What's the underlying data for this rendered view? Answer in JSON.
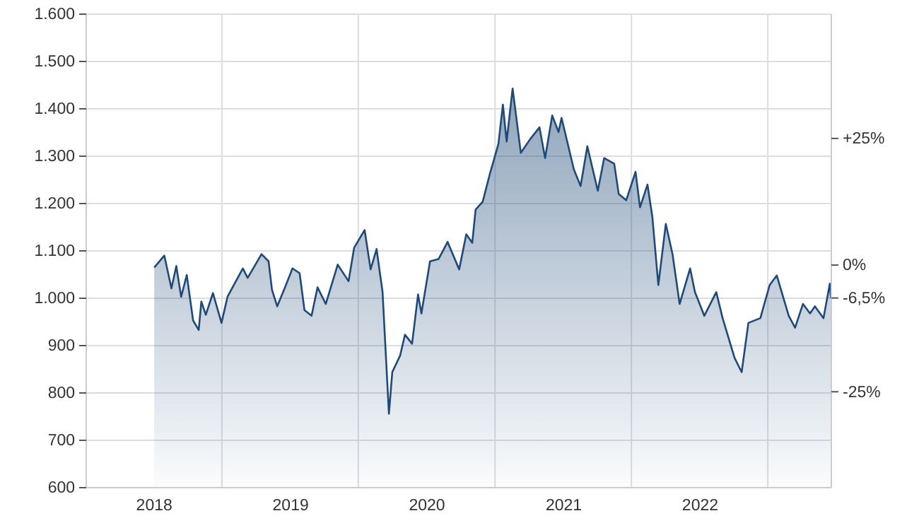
{
  "chart_data": {
    "type": "area",
    "xlim": [
      "2017-07-03",
      "2022-12-18"
    ],
    "xticks": [
      {
        "value": "2018-01-01",
        "label": "2018"
      },
      {
        "value": "2018-07-01",
        "label": null
      },
      {
        "value": "2019-01-01",
        "label": "2019"
      },
      {
        "value": "2019-07-01",
        "label": null
      },
      {
        "value": "2020-01-01",
        "label": "2020"
      },
      {
        "value": "2020-07-01",
        "label": null
      },
      {
        "value": "2021-01-01",
        "label": "2021"
      },
      {
        "value": "2021-07-01",
        "label": null
      },
      {
        "value": "2022-01-01",
        "label": "2022"
      },
      {
        "value": "2022-07-01",
        "label": null
      }
    ],
    "ylim": [
      600,
      1600
    ],
    "yticks": [
      600,
      700,
      800,
      900,
      {
        "value": 1000,
        "label": "1.000"
      },
      {
        "value": 1100,
        "label": "1.100"
      },
      {
        "value": 1200,
        "label": "1.200"
      },
      {
        "value": 1300,
        "label": "1.300"
      },
      {
        "value": 1400,
        "label": "1.400"
      },
      {
        "value": 1500,
        "label": "1.500"
      },
      {
        "value": 1600,
        "label": "1.600"
      }
    ],
    "y2lim": [
      -43.93,
      49.53
    ],
    "y2ticks": [
      {
        "value": 25,
        "label": "+25%"
      },
      {
        "value": 0,
        "label": "0%"
      },
      {
        "value": -6.5,
        "label": "-6,5%"
      },
      {
        "value": -25,
        "label": "-25%"
      }
    ],
    "grid": true,
    "series": [
      {
        "color": "#1f4a78",
        "x": [
          "2018-01-01",
          "2018-01-28",
          "2018-02-16",
          "2018-03-01",
          "2018-03-14",
          "2018-03-29",
          "2018-04-15",
          "2018-04-30",
          "2018-05-07",
          "2018-05-19",
          "2018-06-07",
          "2018-06-30",
          "2018-07-16",
          "2018-08-26",
          "2018-09-08",
          "2018-10-15",
          "2018-11-03",
          "2018-11-12",
          "2018-11-26",
          "2018-12-17",
          "2019-01-06",
          "2019-01-25",
          "2019-02-07",
          "2019-02-26",
          "2019-03-14",
          "2019-04-05",
          "2019-05-07",
          "2019-06-05",
          "2019-06-20",
          "2019-07-18",
          "2019-08-03",
          "2019-08-19",
          "2019-09-04",
          "2019-09-21",
          "2019-09-30",
          "2019-10-21",
          "2019-11-03",
          "2019-11-22",
          "2019-12-08",
          "2019-12-17",
          "2020-01-09",
          "2020-02-01",
          "2020-02-25",
          "2020-03-27",
          "2020-04-15",
          "2020-05-01",
          "2020-05-10",
          "2020-05-29",
          "2020-06-17",
          "2020-07-10",
          "2020-07-22",
          "2020-08-01",
          "2020-08-17",
          "2020-09-08",
          "2020-10-03",
          "2020-10-28",
          "2020-11-12",
          "2020-12-01",
          "2020-12-18",
          "2020-12-26",
          "2021-01-28",
          "2021-02-15",
          "2021-03-05",
          "2021-04-02",
          "2021-04-19",
          "2021-05-16",
          "2021-05-28",
          "2021-06-17",
          "2021-07-12",
          "2021-07-24",
          "2021-08-13",
          "2021-08-26",
          "2021-09-11",
          "2021-10-01",
          "2021-10-19",
          "2021-11-07",
          "2021-12-05",
          "2021-12-18",
          "2022-01-12",
          "2022-02-13",
          "2022-03-02",
          "2022-04-03",
          "2022-04-22",
          "2022-05-10",
          "2022-06-11",
          "2022-07-06",
          "2022-07-25",
          "2022-08-26",
          "2022-09-12",
          "2022-10-03",
          "2022-10-22",
          "2022-11-04",
          "2022-11-27",
          "2022-12-14",
          "2022-12-17"
        ],
        "values": [
          1065,
          1090,
          1021,
          1068,
          1003,
          1049,
          953,
          933,
          993,
          965,
          1011,
          948,
          1003,
          1063,
          1043,
          1093,
          1078,
          1018,
          983,
          1023,
          1063,
          1053,
          975,
          963,
          1023,
          988,
          1071,
          1036,
          1107,
          1144,
          1061,
          1104,
          1013,
          756,
          844,
          879,
          923,
          904,
          1008,
          968,
          1078,
          1083,
          1119,
          1061,
          1135,
          1117,
          1187,
          1204,
          1262,
          1326,
          1409,
          1331,
          1443,
          1307,
          1336,
          1361,
          1296,
          1386,
          1351,
          1381,
          1272,
          1237,
          1321,
          1227,
          1296,
          1284,
          1220,
          1207,
          1267,
          1192,
          1240,
          1172,
          1028,
          1157,
          1093,
          988,
          1063,
          1013,
          963,
          1013,
          958,
          874,
          844,
          948,
          958,
          1028,
          1048,
          963,
          938,
          988,
          968,
          983,
          958,
          1031,
          1000
        ]
      }
    ]
  }
}
